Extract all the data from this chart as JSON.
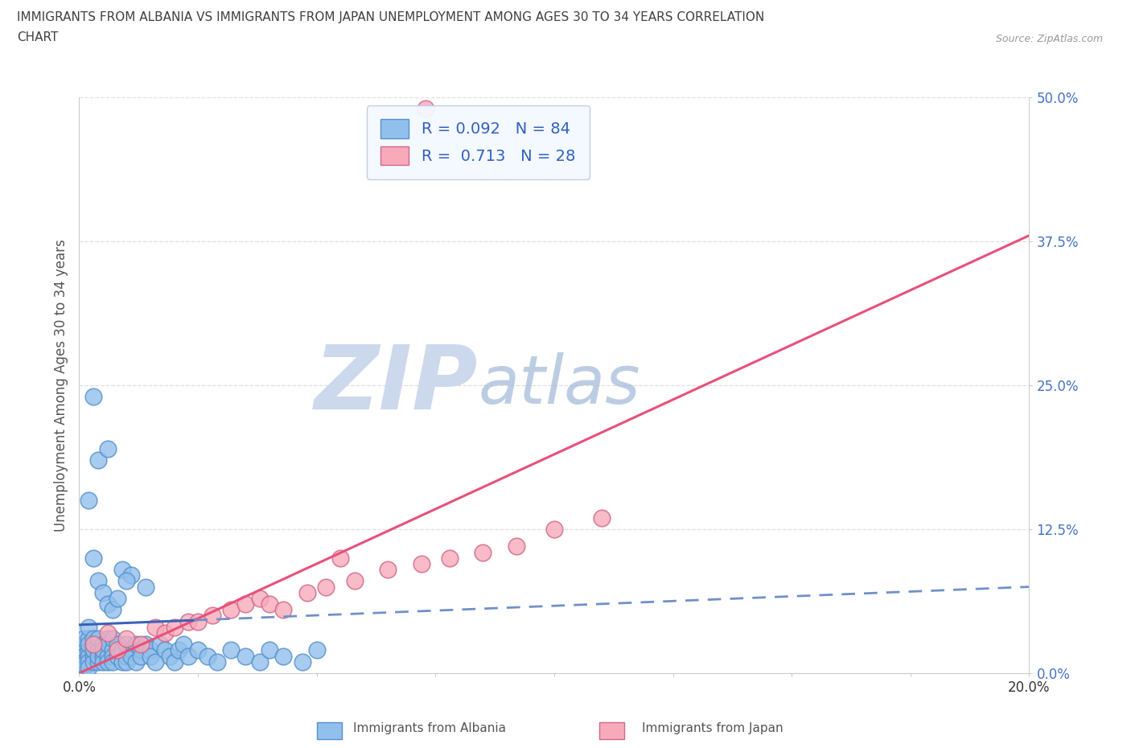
{
  "title_line1": "IMMIGRANTS FROM ALBANIA VS IMMIGRANTS FROM JAPAN UNEMPLOYMENT AMONG AGES 30 TO 34 YEARS CORRELATION",
  "title_line2": "CHART",
  "source": "Source: ZipAtlas.com",
  "ylabel": "Unemployment Among Ages 30 to 34 years",
  "xlim": [
    0.0,
    0.2
  ],
  "ylim": [
    0.0,
    0.5
  ],
  "ytick_positions": [
    0.0,
    0.125,
    0.25,
    0.375,
    0.5
  ],
  "ytick_labels": [
    "0.0%",
    "12.5%",
    "25.0%",
    "37.5%",
    "50.0%"
  ],
  "xtick_positions": [
    0.0,
    0.025,
    0.05,
    0.075,
    0.1,
    0.125,
    0.15,
    0.175,
    0.2
  ],
  "xtick_labels": [
    "0.0%",
    "",
    "",
    "",
    "",
    "",
    "",
    "",
    "20.0%"
  ],
  "albania_R": 0.092,
  "albania_N": 84,
  "japan_R": 0.713,
  "japan_N": 28,
  "albania_color": "#92c0ec",
  "albania_edge": "#5590cc",
  "japan_color": "#f8aabb",
  "japan_edge": "#d06888",
  "trend_albania_solid_color": "#3a62b8",
  "trend_albania_dash_color": "#7090c8",
  "trend_japan_color": "#e8507a",
  "watermark_zip_color": "#ccd8ec",
  "watermark_atlas_color": "#a0b8d8",
  "background_color": "#ffffff",
  "title_color": "#404040",
  "ylabel_color": "#555555",
  "yticklabel_color": "#4472c4",
  "source_color": "#999999",
  "grid_color": "#d8d8d8",
  "albania_trend_x0": 0.0,
  "albania_trend_y0": 0.042,
  "albania_trend_x1": 0.2,
  "albania_trend_y1": 0.075,
  "japan_trend_x0": 0.0,
  "japan_trend_y0": 0.0,
  "japan_trend_x1": 0.2,
  "japan_trend_y1": 0.38,
  "albania_x": [
    0.001,
    0.001,
    0.001,
    0.001,
    0.001,
    0.001,
    0.001,
    0.002,
    0.002,
    0.002,
    0.002,
    0.002,
    0.002,
    0.002,
    0.003,
    0.003,
    0.003,
    0.003,
    0.003,
    0.004,
    0.004,
    0.004,
    0.004,
    0.005,
    0.005,
    0.005,
    0.005,
    0.006,
    0.006,
    0.006,
    0.006,
    0.007,
    0.007,
    0.007,
    0.007,
    0.008,
    0.008,
    0.008,
    0.009,
    0.009,
    0.01,
    0.01,
    0.01,
    0.011,
    0.011,
    0.012,
    0.012,
    0.013,
    0.013,
    0.014,
    0.015,
    0.015,
    0.016,
    0.017,
    0.018,
    0.019,
    0.02,
    0.021,
    0.022,
    0.023,
    0.025,
    0.027,
    0.029,
    0.032,
    0.035,
    0.038,
    0.04,
    0.043,
    0.047,
    0.05,
    0.002,
    0.003,
    0.004,
    0.005,
    0.006,
    0.007,
    0.008,
    0.003,
    0.004,
    0.006,
    0.009,
    0.011,
    0.014,
    0.01
  ],
  "albania_y": [
    0.025,
    0.02,
    0.015,
    0.01,
    0.005,
    0.03,
    0.008,
    0.02,
    0.015,
    0.03,
    0.01,
    0.025,
    0.005,
    0.04,
    0.015,
    0.025,
    0.01,
    0.03,
    0.02,
    0.02,
    0.01,
    0.03,
    0.015,
    0.025,
    0.015,
    0.01,
    0.02,
    0.03,
    0.015,
    0.025,
    0.01,
    0.02,
    0.03,
    0.015,
    0.01,
    0.02,
    0.025,
    0.015,
    0.01,
    0.02,
    0.025,
    0.015,
    0.01,
    0.02,
    0.015,
    0.025,
    0.01,
    0.02,
    0.015,
    0.025,
    0.02,
    0.015,
    0.01,
    0.025,
    0.02,
    0.015,
    0.01,
    0.02,
    0.025,
    0.015,
    0.02,
    0.015,
    0.01,
    0.02,
    0.015,
    0.01,
    0.02,
    0.015,
    0.01,
    0.02,
    0.15,
    0.1,
    0.08,
    0.07,
    0.06,
    0.055,
    0.065,
    0.24,
    0.185,
    0.195,
    0.09,
    0.085,
    0.075,
    0.08
  ],
  "japan_x": [
    0.003,
    0.006,
    0.008,
    0.01,
    0.013,
    0.016,
    0.018,
    0.02,
    0.023,
    0.025,
    0.028,
    0.032,
    0.035,
    0.038,
    0.04,
    0.043,
    0.048,
    0.052,
    0.058,
    0.065,
    0.072,
    0.078,
    0.085,
    0.092,
    0.1,
    0.11,
    0.073,
    0.055
  ],
  "japan_y": [
    0.025,
    0.035,
    0.02,
    0.03,
    0.025,
    0.04,
    0.035,
    0.04,
    0.045,
    0.045,
    0.05,
    0.055,
    0.06,
    0.065,
    0.06,
    0.055,
    0.07,
    0.075,
    0.08,
    0.09,
    0.095,
    0.1,
    0.105,
    0.11,
    0.125,
    0.135,
    0.49,
    0.1
  ]
}
